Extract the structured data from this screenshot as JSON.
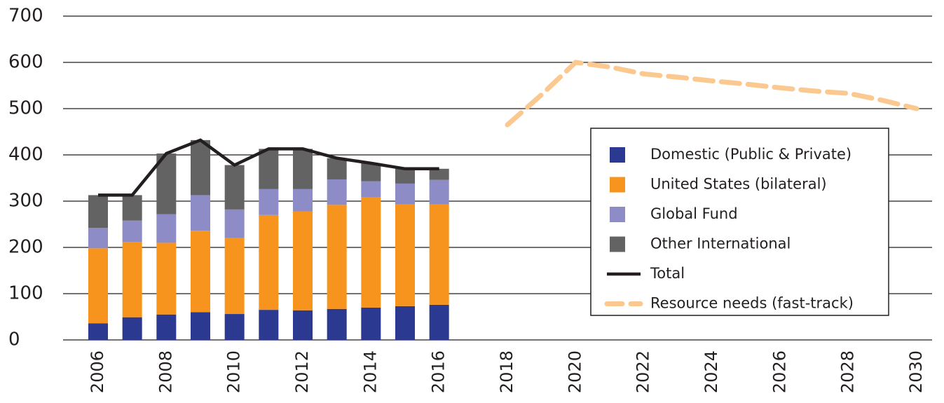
{
  "chart_data": {
    "type": "bar",
    "categories": [
      "2006",
      null,
      "2008",
      null,
      "2010",
      null,
      "2012",
      null,
      "2014",
      null,
      "2016",
      null,
      "2018",
      null,
      "2020",
      null,
      "2022",
      null,
      "2024",
      null,
      "2026",
      null,
      "2028",
      null,
      "2030"
    ],
    "series": [
      {
        "name": "Domestic (Public & Private)",
        "color": "#2b3990",
        "kind": "bar",
        "values": [
          36,
          49,
          55,
          60,
          56,
          65,
          64,
          67,
          70,
          73,
          76,
          null,
          null,
          null,
          null,
          null,
          null,
          null,
          null,
          null,
          null,
          null,
          null,
          null,
          null
        ]
      },
      {
        "name": "United States (bilateral)",
        "color": "#f7941d",
        "kind": "bar",
        "values": [
          162,
          163,
          155,
          176,
          164,
          205,
          214,
          225,
          238,
          220,
          217,
          null,
          null,
          null,
          null,
          null,
          null,
          null,
          null,
          null,
          null,
          null,
          null,
          null,
          null
        ]
      },
      {
        "name": "Global Fund",
        "color": "#8d8cc6",
        "kind": "bar",
        "values": [
          44,
          46,
          62,
          77,
          62,
          56,
          48,
          55,
          35,
          45,
          53,
          null,
          null,
          null,
          null,
          null,
          null,
          null,
          null,
          null,
          null,
          null,
          null,
          null,
          null
        ]
      },
      {
        "name": "Other International",
        "color": "#636363",
        "kind": "bar",
        "values": [
          71,
          55,
          131,
          119,
          96,
          87,
          87,
          46,
          39,
          32,
          24,
          null,
          null,
          null,
          null,
          null,
          null,
          null,
          null,
          null,
          null,
          null,
          null,
          null,
          null
        ]
      },
      {
        "name": "Total",
        "color": "#231f20",
        "kind": "line",
        "values": [
          313,
          313,
          403,
          432,
          378,
          413,
          413,
          393,
          382,
          370,
          370,
          null,
          null,
          null,
          null,
          null,
          null,
          null,
          null,
          null,
          null,
          null,
          null,
          null,
          null
        ]
      },
      {
        "name": "Resource needs (fast-track)",
        "color": "#fbc88f",
        "kind": "line",
        "dashed": true,
        "values": [
          null,
          null,
          null,
          null,
          null,
          null,
          null,
          null,
          null,
          null,
          null,
          null,
          465,
          530,
          600,
          590,
          575,
          568,
          560,
          553,
          545,
          538,
          533,
          518,
          500
        ]
      }
    ],
    "ylim": [
      0,
      700
    ],
    "yticks": [
      0,
      100,
      200,
      300,
      400,
      500,
      600,
      700
    ],
    "grid": true,
    "legend": "right"
  }
}
